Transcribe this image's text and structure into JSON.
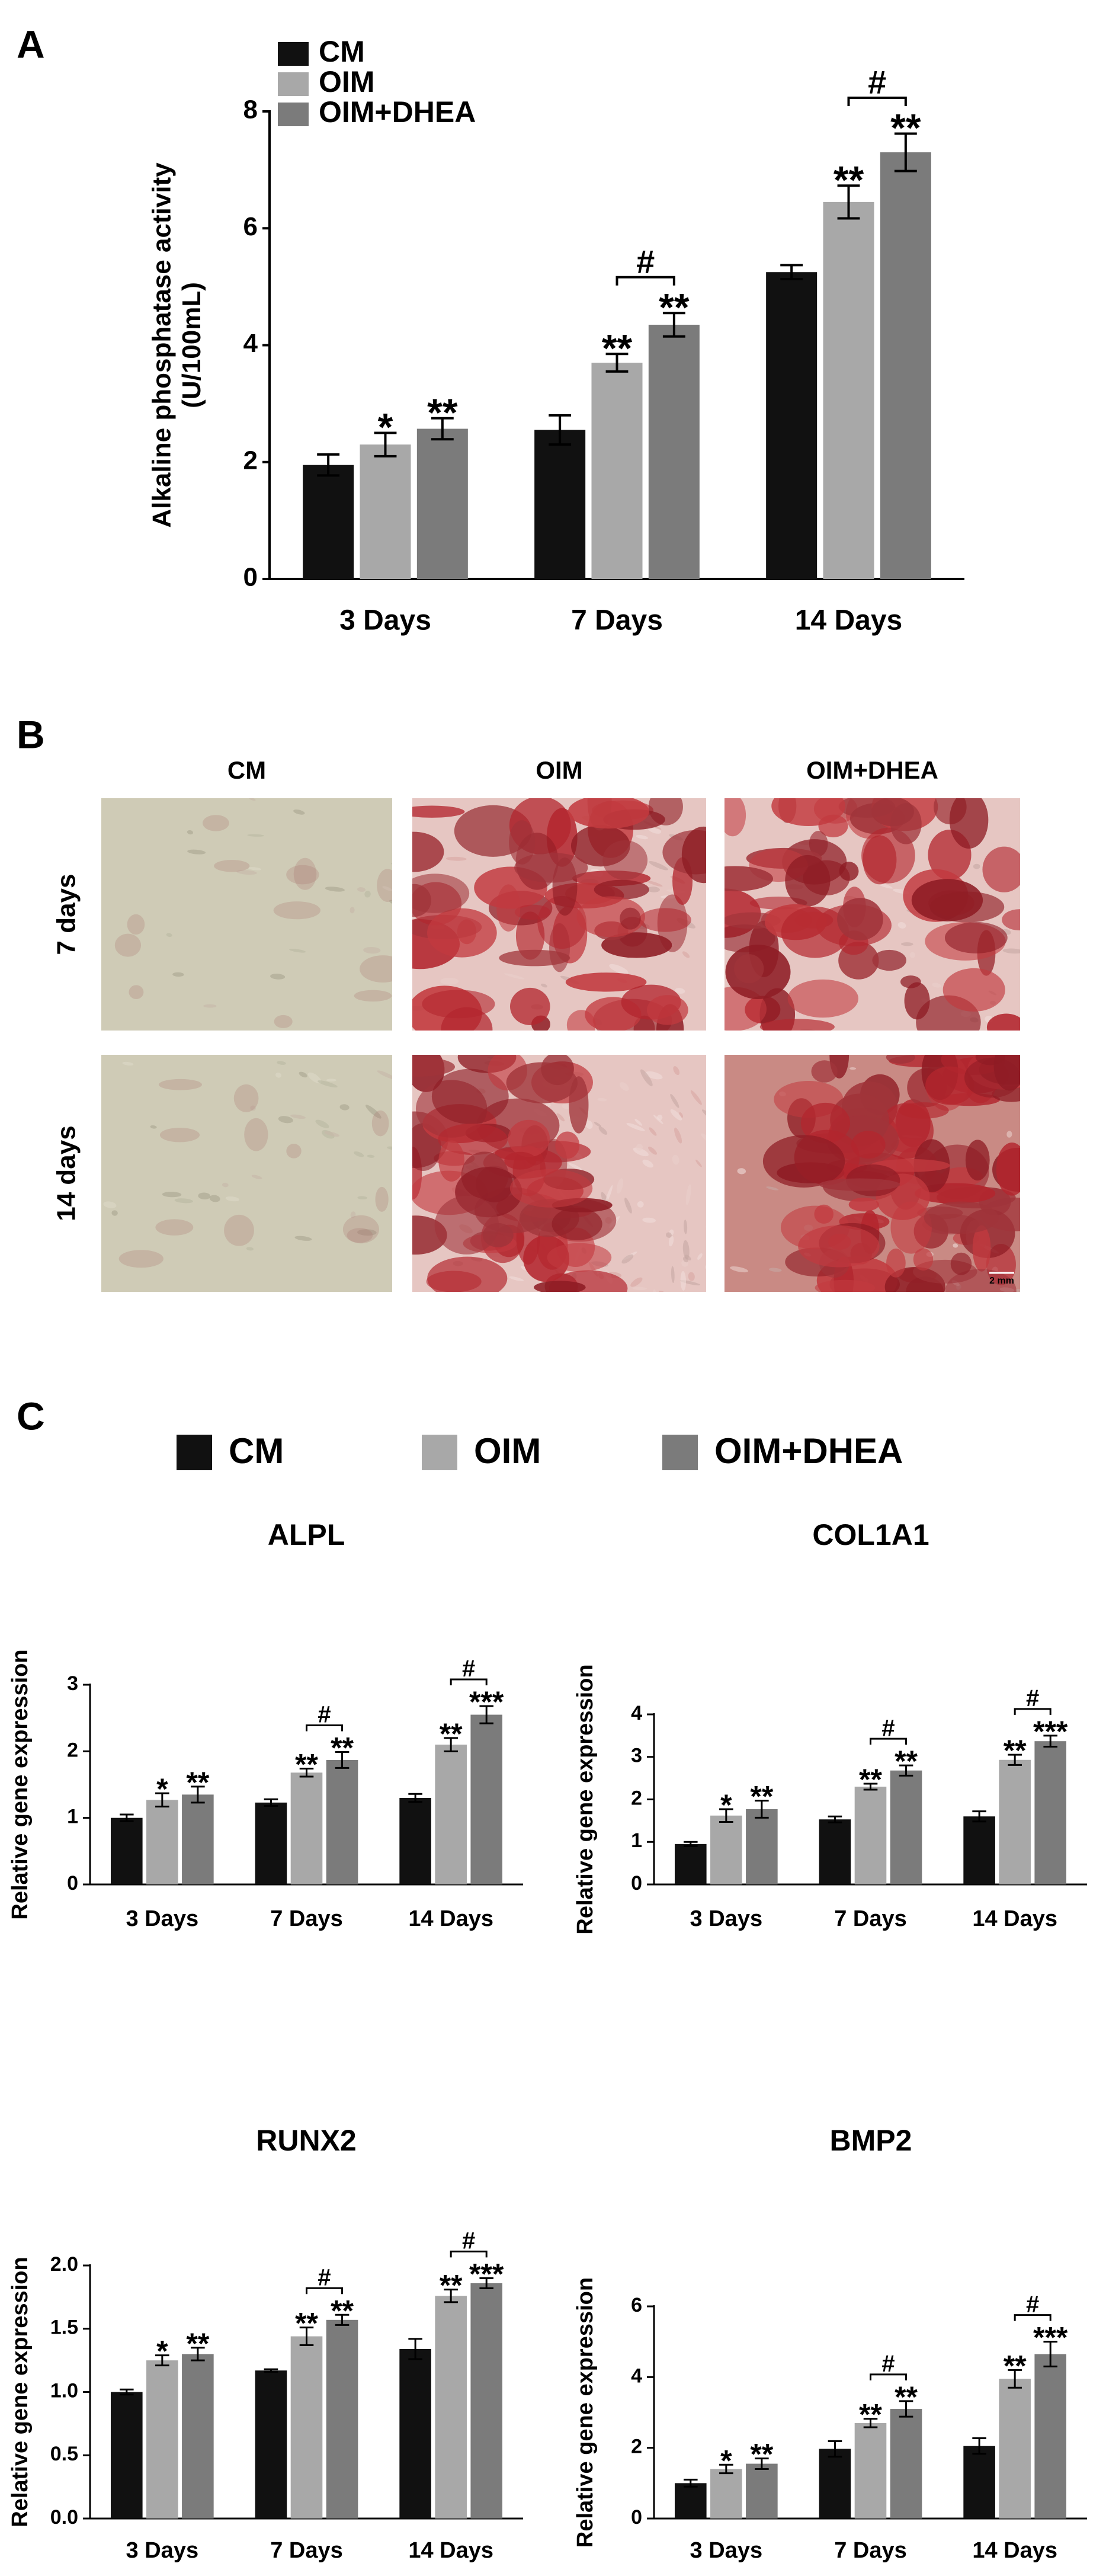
{
  "panels": [
    "A",
    "B",
    "C"
  ],
  "micrographs": {
    "column_labels": [
      "CM",
      "OIM",
      "OIM+DHEA"
    ],
    "row_labels": [
      "7 days",
      "14 days"
    ],
    "scale_bar": "2 mm"
  },
  "chart_data": [
    {
      "type": "bar",
      "y_label": [
        "Alkaline phosphatase activity",
        "(U/100mL)"
      ],
      "legend": "top-left",
      "categories": [
        "3 Days",
        "7 Days",
        "14 Days"
      ],
      "ylim": [
        0,
        8
      ],
      "yticks": [
        0,
        2,
        4,
        6,
        8
      ],
      "series": [
        {
          "name": "CM",
          "color": "#111111",
          "values": [
            1.95,
            2.55,
            5.25
          ],
          "errors": [
            0.18,
            0.25,
            0.12
          ]
        },
        {
          "name": "OIM",
          "color": "#a8a8a8",
          "values": [
            2.3,
            3.7,
            6.45
          ],
          "errors": [
            0.2,
            0.15,
            0.28
          ],
          "annotations": [
            "*",
            "**",
            "**"
          ]
        },
        {
          "name": "OIM+DHEA",
          "color": "#7b7b7b",
          "values": [
            2.57,
            4.35,
            7.3
          ],
          "errors": [
            0.18,
            0.2,
            0.32
          ],
          "annotations": [
            "**",
            "**",
            "**"
          ],
          "bracket_labels": [
            null,
            "#",
            "#"
          ]
        }
      ]
    },
    {
      "type": "bar",
      "title": "ALPL",
      "y_label": "Relative gene expression",
      "legend": "above",
      "categories": [
        "3 Days",
        "7 Days",
        "14 Days"
      ],
      "ylim": [
        0,
        3
      ],
      "yticks": [
        0,
        1,
        2,
        3
      ],
      "series": [
        {
          "name": "CM",
          "color": "#111111",
          "values": [
            1.0,
            1.23,
            1.3
          ],
          "errors": [
            0.05,
            0.05,
            0.06
          ]
        },
        {
          "name": "OIM",
          "color": "#a8a8a8",
          "values": [
            1.27,
            1.68,
            2.1
          ],
          "errors": [
            0.1,
            0.06,
            0.1
          ],
          "annotations": [
            "*",
            "**",
            "**"
          ]
        },
        {
          "name": "OIM+DHEA",
          "color": "#7b7b7b",
          "values": [
            1.35,
            1.87,
            2.55
          ],
          "errors": [
            0.12,
            0.12,
            0.13
          ],
          "annotations": [
            "**",
            "**",
            "***"
          ],
          "bracket_labels": [
            null,
            "#",
            "#"
          ]
        }
      ]
    },
    {
      "type": "bar",
      "title": "COL1A1",
      "y_label": "Relative gene expression",
      "categories": [
        "3 Days",
        "7 Days",
        "14 Days"
      ],
      "ylim": [
        0,
        4
      ],
      "yticks": [
        0,
        1,
        2,
        3,
        4
      ],
      "series": [
        {
          "color": "#111111",
          "values": [
            0.95,
            1.53,
            1.6
          ],
          "errors": [
            0.05,
            0.07,
            0.12
          ]
        },
        {
          "color": "#a8a8a8",
          "values": [
            1.62,
            2.3,
            2.93
          ],
          "errors": [
            0.15,
            0.07,
            0.12
          ],
          "annotations": [
            "*",
            "**",
            "**"
          ]
        },
        {
          "color": "#7b7b7b",
          "values": [
            1.77,
            2.68,
            3.37
          ],
          "errors": [
            0.2,
            0.12,
            0.13
          ],
          "annotations": [
            "**",
            "**",
            "***"
          ],
          "bracket_labels": [
            null,
            "#",
            "#"
          ]
        }
      ]
    },
    {
      "type": "bar",
      "title": "RUNX2",
      "y_label": "Relative gene expression",
      "categories": [
        "3 Days",
        "7 Days",
        "14 Days"
      ],
      "ylim": [
        0,
        2
      ],
      "yticks": [
        {
          "value": 0,
          "label": "0.0"
        },
        0.5,
        {
          "value": 1,
          "label": "1.0"
        },
        1.5,
        {
          "value": 2,
          "label": "2.0"
        }
      ],
      "series": [
        {
          "color": "#111111",
          "values": [
            1.0,
            1.17,
            1.34
          ],
          "errors": [
            0.02,
            0.01,
            0.08
          ]
        },
        {
          "color": "#a8a8a8",
          "values": [
            1.25,
            1.44,
            1.76
          ],
          "errors": [
            0.04,
            0.07,
            0.05
          ],
          "annotations": [
            "*",
            "**",
            "**"
          ]
        },
        {
          "color": "#7b7b7b",
          "values": [
            1.3,
            1.57,
            1.86
          ],
          "errors": [
            0.05,
            0.04,
            0.04
          ],
          "annotations": [
            "**",
            "**",
            "***"
          ],
          "bracket_labels": [
            null,
            "#",
            "#"
          ]
        }
      ]
    },
    {
      "type": "bar",
      "title": "BMP2",
      "y_label": "Relative gene expression",
      "categories": [
        "3 Days",
        "7 Days",
        "14 Days"
      ],
      "ylim": [
        0,
        6
      ],
      "yticks": [
        0,
        2,
        4,
        6
      ],
      "series": [
        {
          "color": "#111111",
          "values": [
            1.0,
            1.97,
            2.05
          ],
          "errors": [
            0.1,
            0.22,
            0.22
          ]
        },
        {
          "color": "#a8a8a8",
          "values": [
            1.4,
            2.7,
            3.95
          ],
          "errors": [
            0.12,
            0.12,
            0.25
          ],
          "annotations": [
            "*",
            "**",
            "**"
          ]
        },
        {
          "color": "#7b7b7b",
          "values": [
            1.55,
            3.1,
            4.65
          ],
          "errors": [
            0.15,
            0.22,
            0.35
          ],
          "annotations": [
            "**",
            "**",
            "***"
          ],
          "bracket_labels": [
            null,
            "#",
            "#"
          ]
        }
      ]
    }
  ]
}
